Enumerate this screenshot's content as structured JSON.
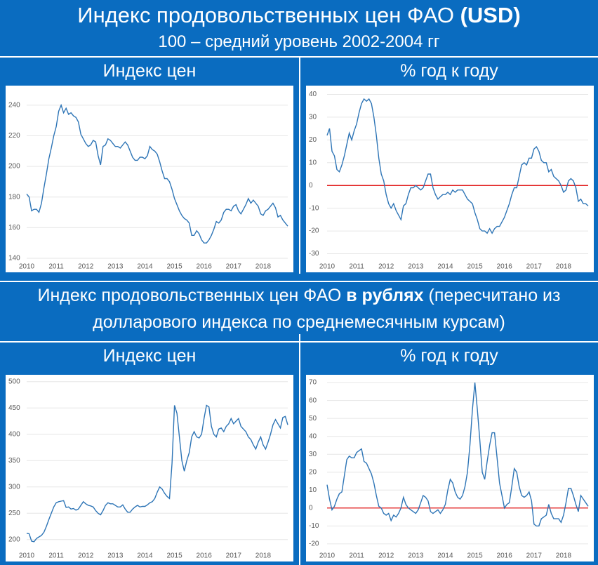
{
  "header": {
    "title": "Индекс продовольственных цен ФАО",
    "title_bold": "(USD)",
    "subtitle": "100 – средний уровень 2002-2004 гг"
  },
  "section": {
    "text_before": "Индекс продовольственных цен ФАО",
    "text_bold": "в рублях",
    "text_after": "(пересчитано из долларового индекса по среднемесячным курсам)"
  },
  "chart_data": [
    {
      "type": "line",
      "title": "Индекс цен",
      "color": "#2e75b6",
      "grid": true,
      "categories": [
        "2010",
        null,
        null,
        null,
        null,
        null,
        null,
        null,
        null,
        null,
        null,
        null,
        "2011",
        null,
        null,
        null,
        null,
        null,
        null,
        null,
        null,
        null,
        null,
        null,
        "2012",
        null,
        null,
        null,
        null,
        null,
        null,
        null,
        null,
        null,
        null,
        null,
        "2013",
        null,
        null,
        null,
        null,
        null,
        null,
        null,
        null,
        null,
        null,
        null,
        "2014",
        null,
        null,
        null,
        null,
        null,
        null,
        null,
        null,
        null,
        null,
        null,
        "2015",
        null,
        null,
        null,
        null,
        null,
        null,
        null,
        null,
        null,
        null,
        null,
        "2016",
        null,
        null,
        null,
        null,
        null,
        null,
        null,
        null,
        null,
        null,
        null,
        "2017",
        null,
        null,
        null,
        null,
        null,
        null,
        null,
        null,
        null,
        null,
        null,
        "2018",
        null,
        null,
        null,
        null,
        null,
        null,
        null,
        null,
        null,
        null
      ],
      "values": [
        182,
        180,
        171,
        172,
        172,
        170,
        176,
        186,
        195,
        205,
        212,
        220,
        226,
        236,
        240,
        235,
        238,
        234,
        235,
        233,
        232,
        229,
        221,
        218,
        215,
        213,
        214,
        217,
        216,
        207,
        201,
        213,
        214,
        218,
        217,
        215,
        213,
        213,
        212,
        214,
        216,
        214,
        210,
        206,
        204,
        204,
        206,
        206,
        205,
        207,
        213,
        211,
        210,
        208,
        203,
        197,
        192,
        192,
        190,
        185,
        179,
        175,
        171,
        168,
        166,
        165,
        163,
        155,
        155,
        158,
        156,
        152,
        150,
        150,
        152,
        155,
        159,
        164,
        163,
        165,
        170,
        172,
        172,
        171,
        174,
        175,
        171,
        169,
        172,
        175,
        179,
        176,
        178,
        176,
        174,
        169,
        168,
        171,
        172,
        174,
        176,
        173,
        167,
        168,
        165,
        163,
        161
      ],
      "ylim": [
        140,
        250
      ],
      "yticks": [
        140,
        160,
        180,
        200,
        220,
        240
      ]
    },
    {
      "type": "line",
      "title": "% год к году",
      "color": "#2e75b6",
      "grid": true,
      "categories": [
        "2010",
        null,
        null,
        null,
        null,
        null,
        null,
        null,
        null,
        null,
        null,
        null,
        "2011",
        null,
        null,
        null,
        null,
        null,
        null,
        null,
        null,
        null,
        null,
        null,
        "2012",
        null,
        null,
        null,
        null,
        null,
        null,
        null,
        null,
        null,
        null,
        null,
        "2013",
        null,
        null,
        null,
        null,
        null,
        null,
        null,
        null,
        null,
        null,
        null,
        "2014",
        null,
        null,
        null,
        null,
        null,
        null,
        null,
        null,
        null,
        null,
        null,
        "2015",
        null,
        null,
        null,
        null,
        null,
        null,
        null,
        null,
        null,
        null,
        null,
        "2016",
        null,
        null,
        null,
        null,
        null,
        null,
        null,
        null,
        null,
        null,
        null,
        "2017",
        null,
        null,
        null,
        null,
        null,
        null,
        null,
        null,
        null,
        null,
        null,
        "2018",
        null,
        null,
        null,
        null,
        null,
        null,
        null,
        null,
        null,
        null
      ],
      "values": [
        22,
        25,
        15,
        13,
        7,
        6,
        9,
        13,
        18,
        23,
        20,
        24,
        27,
        32,
        36,
        38,
        37,
        38,
        36,
        30,
        22,
        12,
        5,
        2,
        -4,
        -8,
        -10,
        -8,
        -11,
        -13,
        -15,
        -9,
        -8,
        -4,
        -1,
        -1,
        0,
        -1,
        -2,
        -1,
        2,
        5,
        5,
        -1,
        -4,
        -6,
        -5,
        -4,
        -4,
        -3,
        -4,
        -2,
        -3,
        -2,
        -2,
        -2,
        -4,
        -6,
        -7,
        -8,
        -12,
        -15,
        -19,
        -20,
        -20,
        -21,
        -19,
        -21,
        -19,
        -18,
        -18,
        -16,
        -14,
        -11,
        -8,
        -4,
        -1,
        -1,
        4,
        9,
        10,
        9,
        12,
        12,
        16,
        17,
        15,
        11,
        10,
        10,
        6,
        7,
        4,
        3,
        2,
        0,
        -3,
        -2,
        2,
        3,
        2,
        -1,
        -7,
        -6,
        -8,
        -8,
        -9
      ],
      "ylim": [
        -32,
        42
      ],
      "yticks": [
        -30,
        -20,
        -10,
        0,
        10,
        20,
        30,
        40
      ],
      "hline": {
        "value": 0,
        "color": "#e00000"
      }
    },
    {
      "type": "line",
      "title": "Индекс цен",
      "color": "#2e75b6",
      "grid": true,
      "categories": [
        "2010",
        null,
        null,
        null,
        null,
        null,
        null,
        null,
        null,
        null,
        null,
        null,
        "2011",
        null,
        null,
        null,
        null,
        null,
        null,
        null,
        null,
        null,
        null,
        null,
        "2012",
        null,
        null,
        null,
        null,
        null,
        null,
        null,
        null,
        null,
        null,
        null,
        "2013",
        null,
        null,
        null,
        null,
        null,
        null,
        null,
        null,
        null,
        null,
        null,
        "2014",
        null,
        null,
        null,
        null,
        null,
        null,
        null,
        null,
        null,
        null,
        null,
        "2015",
        null,
        null,
        null,
        null,
        null,
        null,
        null,
        null,
        null,
        null,
        null,
        "2016",
        null,
        null,
        null,
        null,
        null,
        null,
        null,
        null,
        null,
        null,
        null,
        "2017",
        null,
        null,
        null,
        null,
        null,
        null,
        null,
        null,
        null,
        null,
        null,
        "2018",
        null,
        null,
        null,
        null,
        null,
        null,
        null,
        null,
        null,
        null
      ],
      "values": [
        212,
        211,
        197,
        196,
        202,
        205,
        208,
        214,
        225,
        238,
        250,
        262,
        270,
        272,
        273,
        274,
        261,
        262,
        258,
        259,
        256,
        258,
        265,
        272,
        268,
        265,
        264,
        262,
        255,
        250,
        247,
        255,
        265,
        270,
        268,
        268,
        265,
        262,
        262,
        266,
        258,
        252,
        252,
        258,
        262,
        265,
        262,
        263,
        263,
        266,
        270,
        272,
        278,
        290,
        300,
        296,
        288,
        282,
        278,
        345,
        455,
        440,
        395,
        350,
        330,
        350,
        365,
        395,
        405,
        395,
        393,
        400,
        430,
        455,
        452,
        415,
        400,
        395,
        410,
        412,
        405,
        415,
        420,
        430,
        420,
        425,
        430,
        415,
        410,
        405,
        395,
        390,
        380,
        372,
        385,
        395,
        380,
        372,
        385,
        400,
        418,
        428,
        420,
        412,
        432,
        434,
        418
      ],
      "ylim": [
        185,
        505
      ],
      "yticks": [
        200,
        250,
        300,
        350,
        400,
        450,
        500
      ]
    },
    {
      "type": "line",
      "title": "% год к году",
      "color": "#2e75b6",
      "grid": true,
      "categories": [
        "2010",
        null,
        null,
        null,
        null,
        null,
        null,
        null,
        null,
        null,
        null,
        null,
        "2011",
        null,
        null,
        null,
        null,
        null,
        null,
        null,
        null,
        null,
        null,
        null,
        "2012",
        null,
        null,
        null,
        null,
        null,
        null,
        null,
        null,
        null,
        null,
        null,
        "2013",
        null,
        null,
        null,
        null,
        null,
        null,
        null,
        null,
        null,
        null,
        null,
        "2014",
        null,
        null,
        null,
        null,
        null,
        null,
        null,
        null,
        null,
        null,
        null,
        "2015",
        null,
        null,
        null,
        null,
        null,
        null,
        null,
        null,
        null,
        null,
        null,
        "2016",
        null,
        null,
        null,
        null,
        null,
        null,
        null,
        null,
        null,
        null,
        null,
        "2017",
        null,
        null,
        null,
        null,
        null,
        null,
        null,
        null,
        null,
        null,
        null,
        "2018",
        null,
        null,
        null,
        null,
        null,
        null,
        null,
        null,
        null,
        null
      ],
      "values": [
        13,
        5,
        -1,
        1,
        5,
        8,
        9,
        18,
        27,
        29,
        28,
        28,
        31,
        32,
        33,
        26,
        25,
        22,
        19,
        14,
        7,
        1,
        0,
        -3,
        -4,
        -3,
        -7,
        -4,
        -5,
        -3,
        0,
        6,
        2,
        0,
        -1,
        -2,
        -3,
        -1,
        3,
        7,
        6,
        4,
        -2,
        -3,
        -2,
        -1,
        -3,
        -1,
        2,
        10,
        16,
        14,
        9,
        6,
        5,
        7,
        12,
        20,
        35,
        55,
        70,
        55,
        38,
        20,
        16,
        26,
        35,
        42,
        42,
        28,
        14,
        7,
        0,
        2,
        3,
        12,
        22,
        20,
        12,
        7,
        6,
        7,
        9,
        4,
        -9,
        -10,
        -10,
        -6,
        -5,
        -4,
        2,
        -3,
        -6,
        -6,
        -6,
        -8,
        -4,
        3,
        11,
        11,
        7,
        2,
        -2,
        7,
        5,
        3,
        1
      ],
      "ylim": [
        -22,
        72
      ],
      "yticks": [
        -20,
        -10,
        0,
        10,
        20,
        30,
        40,
        50,
        60,
        70
      ],
      "hline": {
        "value": 0,
        "color": "#e00000"
      }
    }
  ]
}
